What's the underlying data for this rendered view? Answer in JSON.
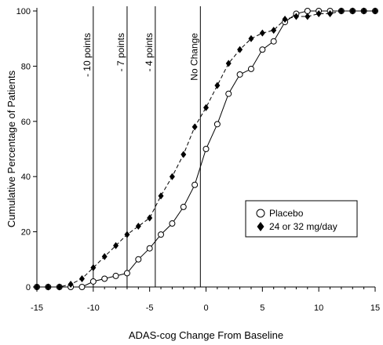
{
  "chart_data": {
    "type": "line",
    "xlabel": "ADAS-cog Change From Baseline",
    "ylabel": "Cumulative  Percentage of Patients",
    "xlim": [
      -15,
      15
    ],
    "ylim": [
      0,
      100
    ],
    "x_ticks": [
      -15,
      -10,
      -5,
      0,
      5,
      10,
      15
    ],
    "y_ticks": [
      0,
      20,
      40,
      60,
      80,
      100
    ],
    "grid": false,
    "reference_lines": [
      {
        "x": -10,
        "label": "- 10 points"
      },
      {
        "x": -7,
        "label": "- 7 points"
      },
      {
        "x": -4.5,
        "label": "- 4 points"
      },
      {
        "x": -0.5,
        "label": "No Change"
      }
    ],
    "legend": {
      "position": "right-middle"
    },
    "series": [
      {
        "name": "Placebo",
        "marker": "open-circle",
        "line_style": "solid",
        "x": [
          -15,
          -14,
          -13,
          -12,
          -11,
          -10,
          -9,
          -8,
          -7,
          -6,
          -5,
          -4,
          -3,
          -2,
          -1,
          0,
          1,
          2,
          3,
          4,
          5,
          6,
          7,
          8,
          9,
          10,
          11,
          12,
          13,
          14,
          15
        ],
        "values": [
          0,
          0,
          0,
          0,
          0,
          2,
          3,
          4,
          5,
          10,
          14,
          19,
          23,
          29,
          37,
          50,
          59,
          70,
          77,
          79,
          86,
          89,
          96,
          99,
          100,
          100,
          100,
          100,
          100,
          100,
          100
        ]
      },
      {
        "name": "24 or 32 mg/day",
        "marker": "filled-diamond",
        "line_style": "dashed",
        "x": [
          -15,
          -14,
          -13,
          -12,
          -11,
          -10,
          -9,
          -8,
          -7,
          -6,
          -5,
          -4,
          -3,
          -2,
          -1,
          0,
          1,
          2,
          3,
          4,
          5,
          6,
          7,
          8,
          9,
          10,
          11,
          12,
          13,
          14,
          15
        ],
        "values": [
          0,
          0,
          0,
          1,
          3,
          7,
          11,
          15,
          19,
          22,
          25,
          33,
          40,
          48,
          58,
          65,
          73,
          81,
          86,
          90,
          92,
          93,
          97,
          98,
          98,
          99,
          99,
          100,
          100,
          100,
          100
        ]
      }
    ]
  }
}
